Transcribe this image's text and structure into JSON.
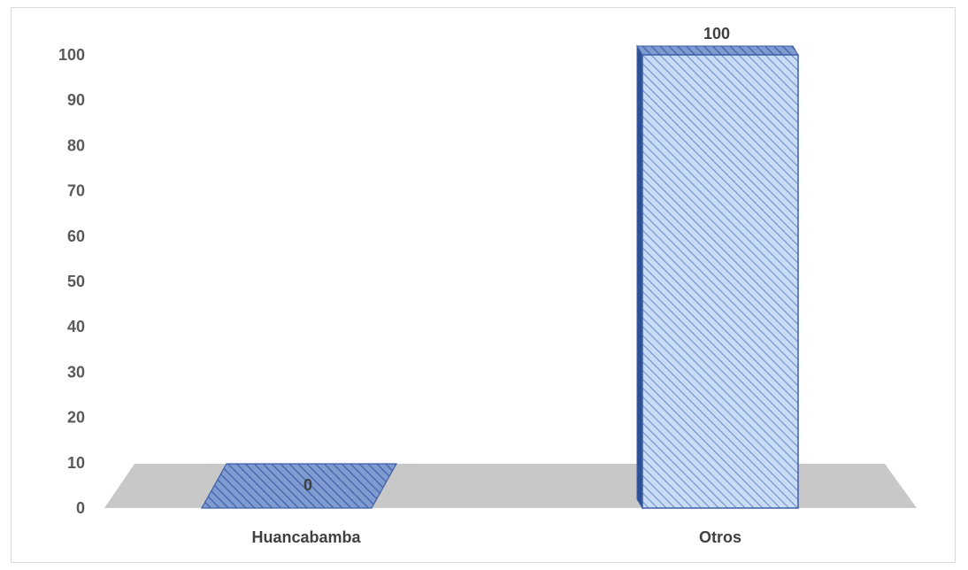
{
  "chart_data": {
    "type": "bar",
    "categories": [
      "Huancabamba",
      "Otros"
    ],
    "values": [
      0,
      100
    ],
    "data_labels": [
      "0",
      "100"
    ],
    "title": "",
    "xlabel": "",
    "ylabel": "",
    "ylim": [
      0,
      100
    ],
    "y_ticks": [
      "0",
      "10",
      "20",
      "30",
      "40",
      "50",
      "60",
      "70",
      "80",
      "90",
      "100"
    ],
    "grid": false,
    "legend": "none",
    "style": "3d-column",
    "colors": {
      "bar_front": "#c9dcf5",
      "bar_hatch": "#6f8fca",
      "bar_side": "#2f4f94",
      "bar_top": "#5a7ac0",
      "bar_edge": "#3f5fa8",
      "floor": "#c8c8c8"
    }
  }
}
